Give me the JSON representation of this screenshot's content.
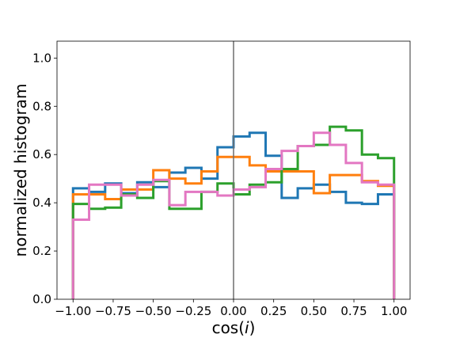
{
  "chart_data": {
    "type": "step",
    "title": "",
    "xlabel_main": "cos(",
    "xlabel_var": "i",
    "xlabel_close": ")",
    "ylabel": "normalized histogram",
    "xlim": [
      -1.1,
      1.1
    ],
    "ylim": [
      0.0,
      1.07
    ],
    "bin_edges": [
      -1.0,
      -0.9,
      -0.8,
      -0.7,
      -0.6,
      -0.5,
      -0.4,
      -0.3,
      -0.2,
      -0.1,
      0.0,
      0.1,
      0.2,
      0.3,
      0.4,
      0.5,
      0.6,
      0.7,
      0.8,
      0.9,
      1.0
    ],
    "xticks": [
      -1.0,
      -0.75,
      -0.5,
      -0.25,
      0.0,
      0.25,
      0.5,
      0.75,
      1.0
    ],
    "xtick_labels": [
      "−1.00",
      "−0.75",
      "−0.50",
      "−0.25",
      "0.00",
      "0.25",
      "0.50",
      "0.75",
      "1.00"
    ],
    "yticks": [
      0.0,
      0.2,
      0.4,
      0.6,
      0.8,
      1.0
    ],
    "ytick_labels": [
      "0.0",
      "0.2",
      "0.4",
      "0.6",
      "0.8",
      "1.0"
    ],
    "vline_x": 0.0,
    "vline_color": "#6e6e6e",
    "series": [
      {
        "color": "#1f77b4",
        "values": [
          0.46,
          0.445,
          0.48,
          0.44,
          0.485,
          0.465,
          0.525,
          0.545,
          0.5,
          0.63,
          0.675,
          0.69,
          0.595,
          0.42,
          0.46,
          0.475,
          0.445,
          0.4,
          0.395,
          0.435
        ]
      },
      {
        "color": "#ff7f0e",
        "values": [
          0.435,
          0.435,
          0.415,
          0.455,
          0.455,
          0.535,
          0.5,
          0.48,
          0.53,
          0.59,
          0.59,
          0.555,
          0.53,
          0.53,
          0.53,
          0.44,
          0.515,
          0.515,
          0.49,
          0.47
        ]
      },
      {
        "color": "#2ca02c",
        "values": [
          0.395,
          0.375,
          0.38,
          0.435,
          0.42,
          0.49,
          0.375,
          0.375,
          0.445,
          0.48,
          0.435,
          0.475,
          0.485,
          0.54,
          0.635,
          0.64,
          0.715,
          0.7,
          0.6,
          0.585
        ]
      },
      {
        "color": "#e377c2",
        "values": [
          0.33,
          0.475,
          0.475,
          0.43,
          0.475,
          0.495,
          0.39,
          0.445,
          0.445,
          0.43,
          0.455,
          0.465,
          0.54,
          0.615,
          0.635,
          0.69,
          0.64,
          0.565,
          0.485,
          0.475
        ]
      }
    ]
  }
}
